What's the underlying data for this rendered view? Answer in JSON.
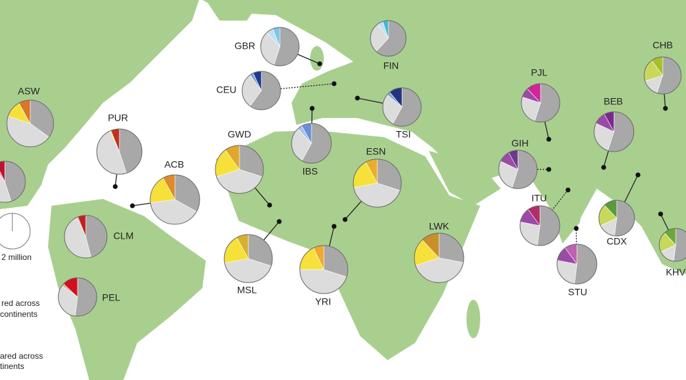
{
  "populations": [
    {
      "label": "GBR",
      "slices": [
        {
          "value": 55,
          "color": "#a8a8a8"
        },
        {
          "value": 33,
          "color": "#dcdcdc"
        },
        {
          "value": 6,
          "color": "#bfe0ef"
        },
        {
          "value": 6,
          "color": "#7ec4e4"
        }
      ]
    },
    {
      "label": "FIN",
      "slices": [
        {
          "value": 62,
          "color": "#a8a8a8"
        },
        {
          "value": 28,
          "color": "#dcdcdc"
        },
        {
          "value": 5,
          "color": "#bfe0ef"
        },
        {
          "value": 5,
          "color": "#3fb8d6"
        }
      ]
    },
    {
      "label": "CEU",
      "slices": [
        {
          "value": 60,
          "color": "#a8a8a8"
        },
        {
          "value": 30,
          "color": "#dcdcdc"
        },
        {
          "value": 3,
          "color": "#7fa8d8"
        },
        {
          "value": 7,
          "color": "#1f3a8c"
        }
      ]
    },
    {
      "label": "TSI",
      "slices": [
        {
          "value": 58,
          "color": "#a8a8a8"
        },
        {
          "value": 28,
          "color": "#dcdcdc"
        },
        {
          "value": 3,
          "color": "#7fa8d8"
        },
        {
          "value": 11,
          "color": "#25337e"
        }
      ]
    },
    {
      "label": "IBS",
      "slices": [
        {
          "value": 58,
          "color": "#a8a8a8"
        },
        {
          "value": 30,
          "color": "#dcdcdc"
        },
        {
          "value": 4,
          "color": "#a9c2e8"
        },
        {
          "value": 8,
          "color": "#6b8fd4"
        }
      ]
    },
    {
      "label": "PJL",
      "slices": [
        {
          "value": 55,
          "color": "#a8a8a8"
        },
        {
          "value": 25,
          "color": "#dcdcdc"
        },
        {
          "value": 8,
          "color": "#9b4aa6"
        },
        {
          "value": 12,
          "color": "#d0269a"
        }
      ]
    },
    {
      "label": "GIH",
      "slices": [
        {
          "value": 55,
          "color": "#a8a8a8"
        },
        {
          "value": 27,
          "color": "#dcdcdc"
        },
        {
          "value": 10,
          "color": "#9b4aa6"
        },
        {
          "value": 8,
          "color": "#6b3a8c"
        }
      ]
    },
    {
      "label": "ITU",
      "slices": [
        {
          "value": 52,
          "color": "#a8a8a8"
        },
        {
          "value": 26,
          "color": "#dcdcdc"
        },
        {
          "value": 12,
          "color": "#9b4aa6"
        },
        {
          "value": 10,
          "color": "#b02c6a"
        }
      ]
    },
    {
      "label": "STU",
      "slices": [
        {
          "value": 52,
          "color": "#a8a8a8"
        },
        {
          "value": 26,
          "color": "#dcdcdc"
        },
        {
          "value": 12,
          "color": "#9b4aa6"
        },
        {
          "value": 10,
          "color": "#c060b0"
        }
      ]
    },
    {
      "label": "BEB",
      "slices": [
        {
          "value": 55,
          "color": "#a8a8a8"
        },
        {
          "value": 27,
          "color": "#dcdcdc"
        },
        {
          "value": 10,
          "color": "#9b4aa6"
        },
        {
          "value": 8,
          "color": "#7a2a8a"
        }
      ]
    },
    {
      "label": "CHB",
      "slices": [
        {
          "value": 55,
          "color": "#a8a8a8"
        },
        {
          "value": 15,
          "color": "#dcdcdc"
        },
        {
          "value": 20,
          "color": "#c9d85a"
        },
        {
          "value": 10,
          "color": "#a8bf2a"
        }
      ]
    },
    {
      "label": "CDX",
      "slices": [
        {
          "value": 52,
          "color": "#a8a8a8"
        },
        {
          "value": 16,
          "color": "#dcdcdc"
        },
        {
          "value": 20,
          "color": "#c9d85a"
        },
        {
          "value": 12,
          "color": "#5a9a3a"
        }
      ]
    },
    {
      "label": "KHV",
      "slices": [
        {
          "value": 52,
          "color": "#a8a8a8"
        },
        {
          "value": 16,
          "color": "#dcdcdc"
        },
        {
          "value": 20,
          "color": "#c9d85a"
        },
        {
          "value": 12,
          "color": "#6aaa3a"
        }
      ]
    },
    {
      "label": "ASW",
      "slices": [
        {
          "value": 35,
          "color": "#a8a8a8"
        },
        {
          "value": 45,
          "color": "#dcdcdc"
        },
        {
          "value": 12,
          "color": "#f5e13a"
        },
        {
          "value": 8,
          "color": "#d8762a"
        }
      ]
    },
    {
      "label": "ACB",
      "slices": [
        {
          "value": 33,
          "color": "#a8a8a8"
        },
        {
          "value": 40,
          "color": "#dcdcdc"
        },
        {
          "value": 19,
          "color": "#f5e13a"
        },
        {
          "value": 8,
          "color": "#e08a2a"
        }
      ]
    },
    {
      "label": "PUR",
      "slices": [
        {
          "value": 45,
          "color": "#a8a8a8"
        },
        {
          "value": 48,
          "color": "#dcdcdc"
        },
        {
          "value": 1,
          "color": "#f5e13a"
        },
        {
          "value": 6,
          "color": "#c0301f"
        }
      ]
    },
    {
      "label": "CLM",
      "slices": [
        {
          "value": 46,
          "color": "#a8a8a8"
        },
        {
          "value": 47,
          "color": "#dcdcdc"
        },
        {
          "value": 1,
          "color": "#e4a0a0"
        },
        {
          "value": 6,
          "color": "#c0201f"
        }
      ]
    },
    {
      "label": "PEL",
      "slices": [
        {
          "value": 52,
          "color": "#a8a8a8"
        },
        {
          "value": 33,
          "color": "#dcdcdc"
        },
        {
          "value": 2,
          "color": "#e4a0a0"
        },
        {
          "value": 13,
          "color": "#d0101f"
        }
      ]
    },
    {
      "label": "GWD",
      "slices": [
        {
          "value": 30,
          "color": "#a8a8a8"
        },
        {
          "value": 40,
          "color": "#dcdcdc"
        },
        {
          "value": 20,
          "color": "#f5e13a"
        },
        {
          "value": 10,
          "color": "#e0a82a"
        }
      ]
    },
    {
      "label": "ESN",
      "slices": [
        {
          "value": 30,
          "color": "#a8a8a8"
        },
        {
          "value": 42,
          "color": "#dcdcdc"
        },
        {
          "value": 20,
          "color": "#f5e13a"
        },
        {
          "value": 8,
          "color": "#e8b02a"
        }
      ]
    },
    {
      "label": "MSL",
      "slices": [
        {
          "value": 30,
          "color": "#a8a8a8"
        },
        {
          "value": 42,
          "color": "#dcdcdc"
        },
        {
          "value": 20,
          "color": "#f5e13a"
        },
        {
          "value": 8,
          "color": "#d8b030"
        }
      ]
    },
    {
      "label": "YRI",
      "slices": [
        {
          "value": 30,
          "color": "#a8a8a8"
        },
        {
          "value": 45,
          "color": "#dcdcdc"
        },
        {
          "value": 18,
          "color": "#f5e13a"
        },
        {
          "value": 7,
          "color": "#f0a830"
        }
      ]
    },
    {
      "label": "LWK",
      "slices": [
        {
          "value": 28,
          "color": "#a8a8a8"
        },
        {
          "value": 42,
          "color": "#dcdcdc"
        },
        {
          "value": 18,
          "color": "#f5e13a"
        },
        {
          "value": 12,
          "color": "#c8902a"
        }
      ]
    },
    {
      "label": null,
      "slices": [
        {
          "value": 45,
          "color": "#a8a8a8"
        },
        {
          "value": 45,
          "color": "#dcdcdc"
        },
        {
          "value": 3,
          "color": "#e4a0a0"
        },
        {
          "value": 7,
          "color": "#c0102f"
        }
      ]
    }
  ],
  "legend": {
    "size_label": "2 million",
    "texts": [
      "red across",
      "continents",
      "ared across",
      "tinents"
    ]
  }
}
